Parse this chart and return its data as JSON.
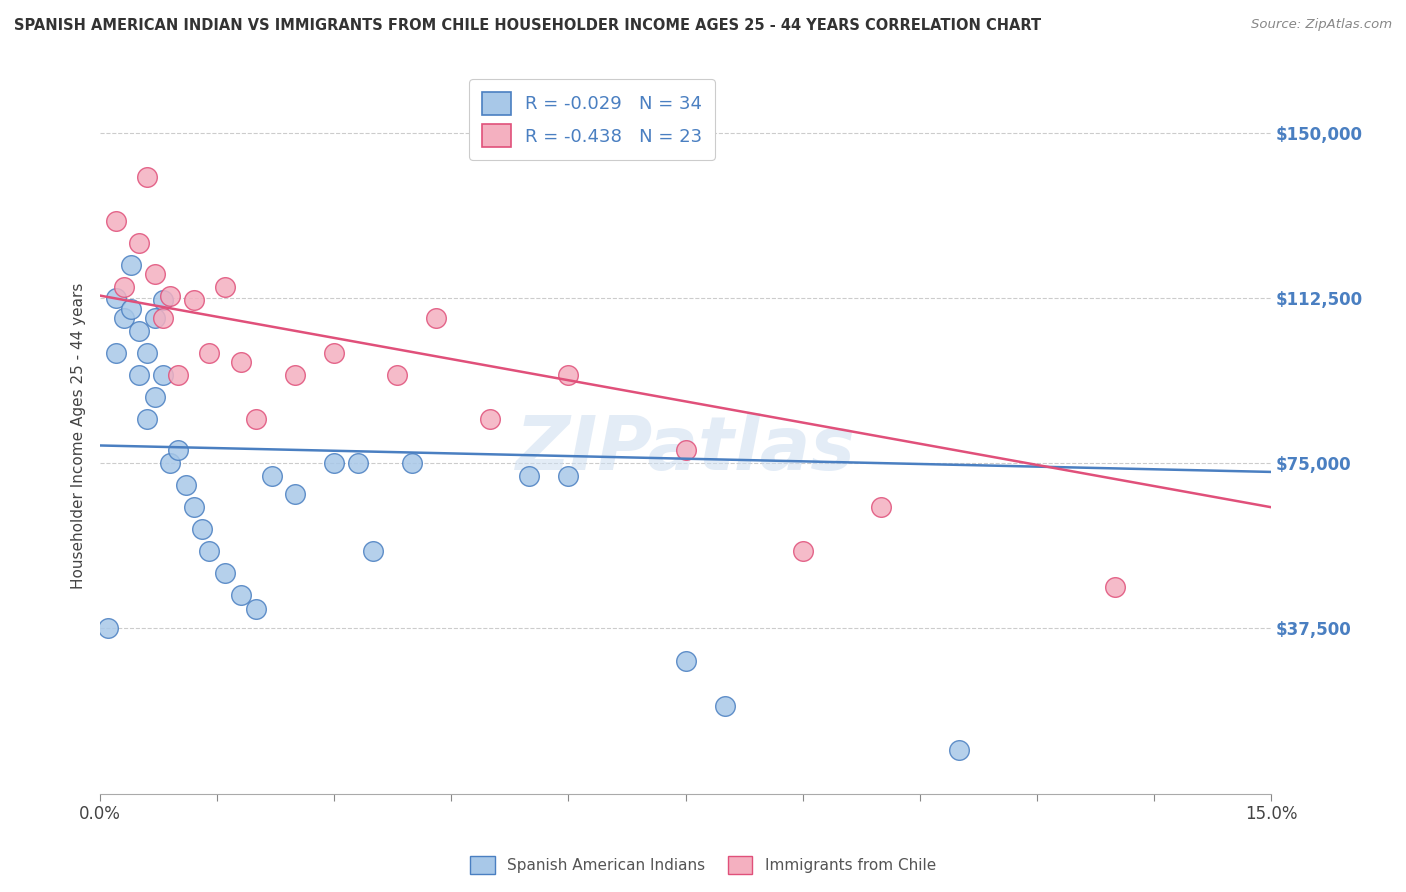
{
  "title": "SPANISH AMERICAN INDIAN VS IMMIGRANTS FROM CHILE HOUSEHOLDER INCOME AGES 25 - 44 YEARS CORRELATION CHART",
  "source": "Source: ZipAtlas.com",
  "ylabel": "Householder Income Ages 25 - 44 years",
  "legend_label1": "Spanish American Indians",
  "legend_label2": "Immigrants from Chile",
  "r1": "-0.029",
  "n1": "34",
  "r2": "-0.438",
  "n2": "23",
  "xmin": 0.0,
  "xmax": 0.15,
  "ymin": 0,
  "ymax": 162500,
  "yticks": [
    0,
    37500,
    75000,
    112500,
    150000
  ],
  "ytick_labels": [
    "",
    "$37,500",
    "$75,000",
    "$112,500",
    "$150,000"
  ],
  "xtick_positions": [
    0.0,
    0.015,
    0.03,
    0.045,
    0.06,
    0.075,
    0.09,
    0.105,
    0.12,
    0.135,
    0.15
  ],
  "xtick_labels": [
    "0.0%",
    "",
    "",
    "",
    "",
    "",
    "",
    "",
    "",
    "",
    "15.0%"
  ],
  "color1": "#a8c8e8",
  "color2": "#f4b0c0",
  "line_color1": "#4a7fc1",
  "line_color2": "#e0507a",
  "background_color": "#ffffff",
  "watermark": "ZIPatlas",
  "blue_scatter_x": [
    0.001,
    0.002,
    0.002,
    0.003,
    0.004,
    0.004,
    0.005,
    0.005,
    0.006,
    0.006,
    0.007,
    0.007,
    0.008,
    0.008,
    0.009,
    0.01,
    0.011,
    0.012,
    0.013,
    0.014,
    0.016,
    0.018,
    0.02,
    0.022,
    0.025,
    0.03,
    0.033,
    0.035,
    0.04,
    0.055,
    0.06,
    0.075,
    0.08,
    0.11
  ],
  "blue_scatter_y": [
    37500,
    112500,
    100000,
    108000,
    110000,
    120000,
    105000,
    95000,
    85000,
    100000,
    90000,
    108000,
    95000,
    112000,
    75000,
    78000,
    70000,
    65000,
    60000,
    55000,
    50000,
    45000,
    42000,
    72000,
    68000,
    75000,
    75000,
    55000,
    75000,
    72000,
    72000,
    30000,
    20000,
    10000
  ],
  "pink_scatter_x": [
    0.002,
    0.003,
    0.005,
    0.006,
    0.007,
    0.008,
    0.009,
    0.01,
    0.012,
    0.014,
    0.016,
    0.018,
    0.02,
    0.025,
    0.03,
    0.038,
    0.043,
    0.05,
    0.06,
    0.075,
    0.09,
    0.1,
    0.13
  ],
  "pink_scatter_y": [
    130000,
    115000,
    125000,
    140000,
    118000,
    108000,
    113000,
    95000,
    112000,
    100000,
    115000,
    98000,
    85000,
    95000,
    100000,
    95000,
    108000,
    85000,
    95000,
    78000,
    55000,
    65000,
    47000
  ],
  "blue_line_x": [
    0.0,
    0.15
  ],
  "blue_line_y": [
    79000,
    73000
  ],
  "pink_line_x": [
    0.0,
    0.15
  ],
  "pink_line_y": [
    113000,
    65000
  ]
}
